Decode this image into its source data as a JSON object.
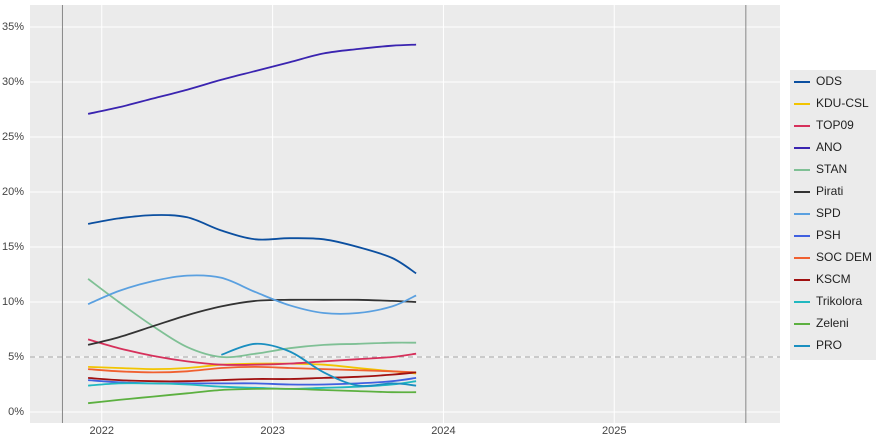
{
  "chart_data": {
    "type": "line",
    "x": [
      2021.92,
      2022.1,
      2022.3,
      2022.5,
      2022.7,
      2022.9,
      2023.1,
      2023.3,
      2023.5,
      2023.7,
      2023.84
    ],
    "xlim": [
      2021.58,
      2025.97
    ],
    "xticks": [
      2022,
      2023,
      2024,
      2025
    ],
    "ylim": [
      -1,
      37
    ],
    "yticks": [
      {
        "value": 0,
        "label": "0%"
      },
      {
        "value": 5,
        "label": "5%"
      },
      {
        "value": 10,
        "label": "10%"
      },
      {
        "value": 15,
        "label": "15%"
      },
      {
        "value": 20,
        "label": "20%"
      },
      {
        "value": 25,
        "label": "25%"
      },
      {
        "value": 30,
        "label": "30%"
      },
      {
        "value": 35,
        "label": "35%"
      }
    ],
    "grid": true,
    "vlines": [
      2021.77,
      2025.77
    ],
    "hline": 5,
    "legend": "right",
    "series": [
      {
        "name": "ODS",
        "color": "#0b4fa0",
        "values": [
          17.1,
          17.6,
          17.9,
          17.7,
          16.5,
          15.7,
          15.8,
          15.7,
          15.0,
          14.0,
          12.6
        ]
      },
      {
        "name": "KDU-CSL",
        "color": "#f2c400",
        "values": [
          4.1,
          4.0,
          3.9,
          4.0,
          4.3,
          4.4,
          4.4,
          4.3,
          4.0,
          3.7,
          3.5
        ]
      },
      {
        "name": "TOP09",
        "color": "#d6305b",
        "values": [
          6.6,
          5.8,
          5.1,
          4.6,
          4.3,
          4.3,
          4.4,
          4.6,
          4.8,
          5.0,
          5.3
        ]
      },
      {
        "name": "ANO",
        "color": "#3a24b0",
        "values": [
          27.1,
          27.7,
          28.5,
          29.3,
          30.2,
          31.0,
          31.8,
          32.6,
          33.0,
          33.3,
          33.4
        ]
      },
      {
        "name": "STAN",
        "color": "#7fc095",
        "values": [
          12.1,
          10.0,
          7.8,
          5.9,
          5.0,
          5.3,
          5.8,
          6.1,
          6.2,
          6.3,
          6.3
        ]
      },
      {
        "name": "Pirati",
        "color": "#333333",
        "values": [
          6.1,
          6.8,
          7.8,
          8.8,
          9.6,
          10.1,
          10.2,
          10.2,
          10.2,
          10.1,
          10.0
        ]
      },
      {
        "name": "SPD",
        "color": "#5aa0e0",
        "values": [
          9.8,
          11.0,
          11.9,
          12.4,
          12.2,
          10.9,
          9.7,
          9.0,
          9.0,
          9.6,
          10.6
        ]
      },
      {
        "name": "PSH",
        "color": "#4060e0",
        "values": [
          2.9,
          2.7,
          2.6,
          2.6,
          2.6,
          2.6,
          2.5,
          2.5,
          2.6,
          2.8,
          3.1
        ]
      },
      {
        "name": "SOC DEM",
        "color": "#f06030",
        "values": [
          3.9,
          3.7,
          3.6,
          3.7,
          4.0,
          4.1,
          4.0,
          3.9,
          3.8,
          3.7,
          3.6
        ]
      },
      {
        "name": "KSCM",
        "color": "#a01010",
        "values": [
          3.1,
          2.9,
          2.8,
          2.8,
          2.9,
          3.0,
          3.0,
          3.1,
          3.2,
          3.4,
          3.6
        ]
      },
      {
        "name": "Trikolora",
        "color": "#20b8c0",
        "values": [
          2.4,
          2.6,
          2.6,
          2.5,
          2.3,
          2.2,
          2.1,
          2.2,
          2.3,
          2.5,
          2.8
        ]
      },
      {
        "name": "Zeleni",
        "color": "#5cb040",
        "values": [
          0.8,
          1.1,
          1.4,
          1.7,
          2.0,
          2.1,
          2.1,
          2.0,
          1.9,
          1.8,
          1.8
        ]
      },
      {
        "name": "PRO",
        "color": "#1a8fc0",
        "values": [
          null,
          null,
          null,
          null,
          5.2,
          6.2,
          5.5,
          3.6,
          2.4,
          2.6,
          2.4
        ]
      }
    ]
  }
}
